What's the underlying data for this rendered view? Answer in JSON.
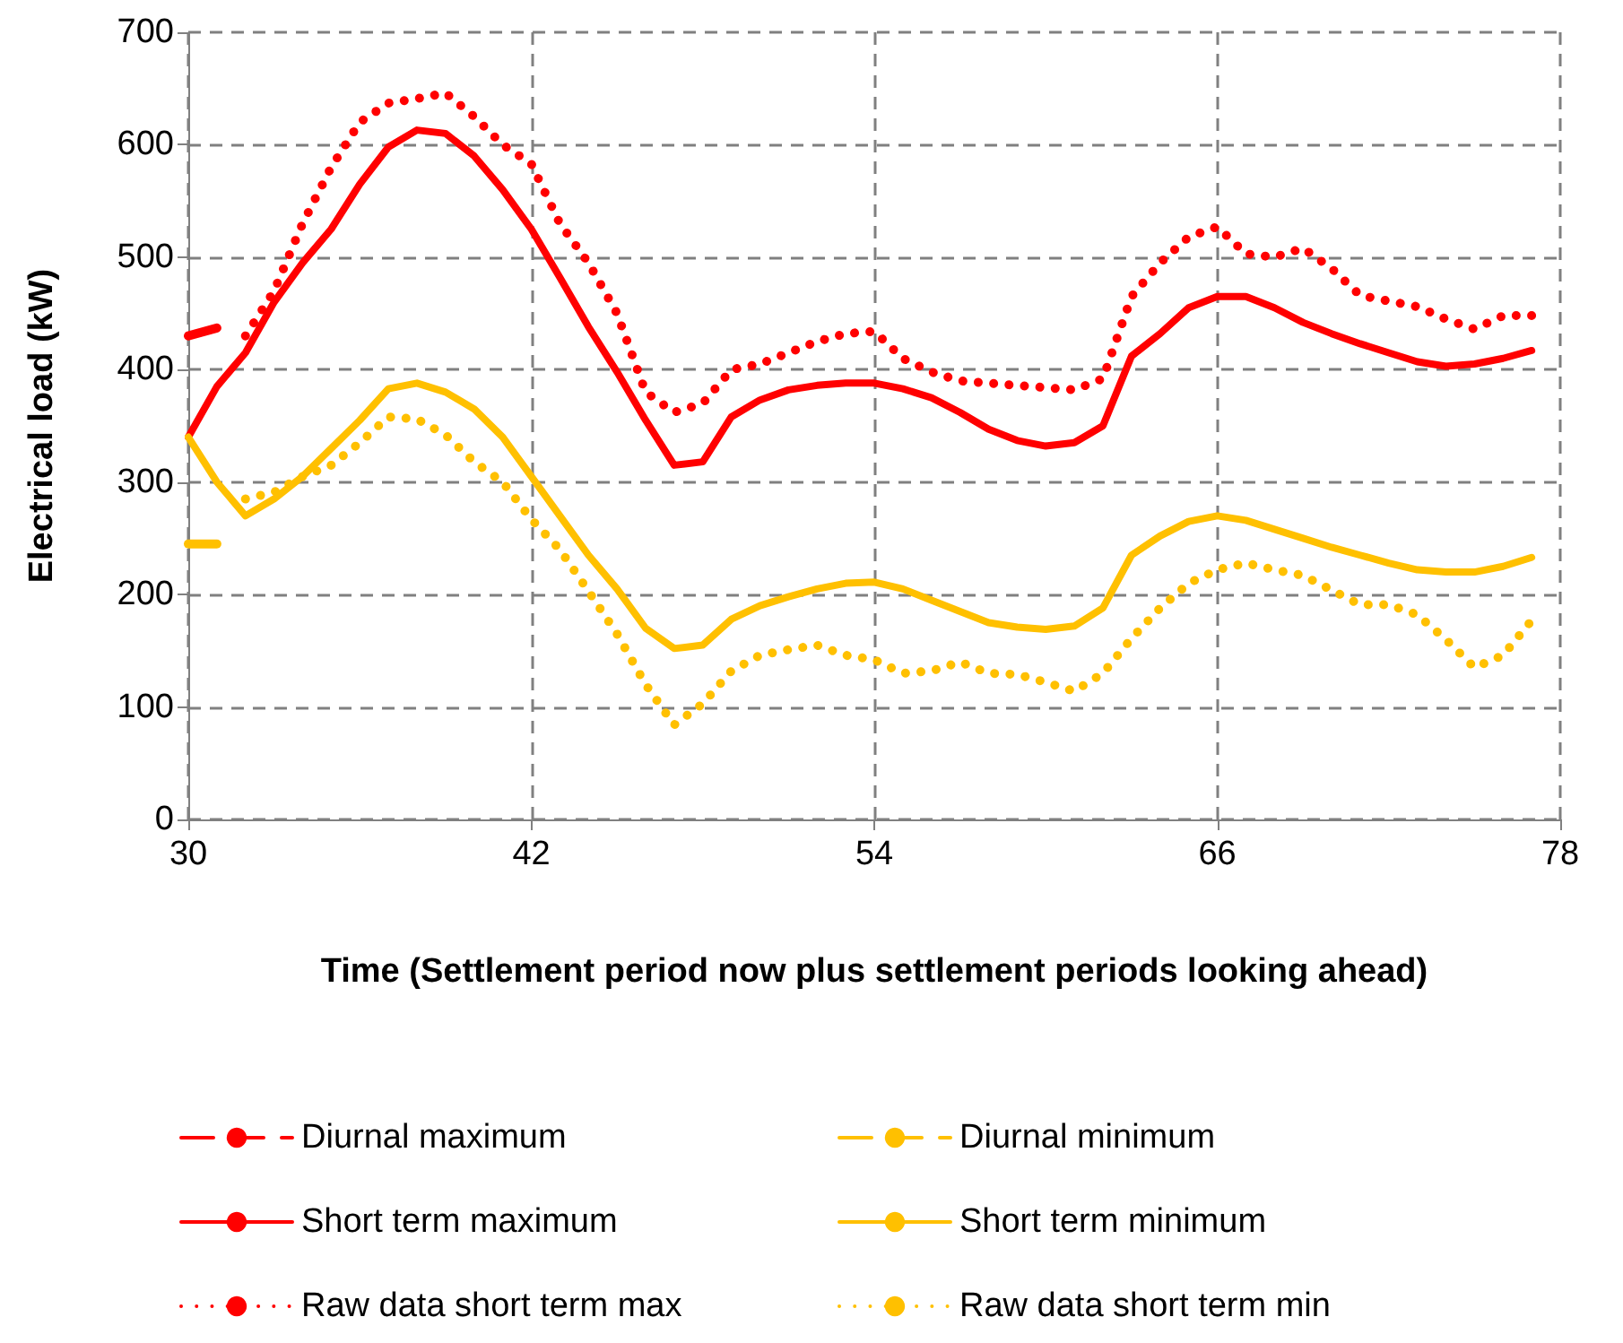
{
  "chart_data": {
    "type": "line",
    "xlabel": "Time (Settlement period now plus settlement periods looking ahead)",
    "ylabel": "Electrical load (kW)",
    "xlim": [
      30,
      78
    ],
    "xticks": [
      30,
      42,
      54,
      66,
      78
    ],
    "ylim": [
      0,
      700
    ],
    "yticks": [
      0,
      100,
      200,
      300,
      400,
      500,
      600,
      700
    ],
    "grid": true,
    "legend": "bottom",
    "marker": "none",
    "series": [
      {
        "name": "Diurnal maximum",
        "color": "#ff0000",
        "line_style": "dashed",
        "x": [
          30,
          31
        ],
        "values": [
          430,
          437
        ]
      },
      {
        "name": "Diurnal minimum",
        "color": "#ffc000",
        "line_style": "dashed",
        "x": [
          30,
          31
        ],
        "values": [
          245,
          245
        ]
      },
      {
        "name": "Short term maximum",
        "color": "#ff0000",
        "line_style": "solid",
        "x": [
          30,
          31,
          32,
          33,
          34,
          35,
          36,
          37,
          38,
          39,
          40,
          41,
          42,
          43,
          44,
          45,
          46,
          47,
          48,
          49,
          50,
          51,
          52,
          53,
          54,
          55,
          56,
          57,
          58,
          59,
          60,
          61,
          62,
          63,
          64,
          65,
          66,
          67,
          68,
          69,
          70,
          71,
          72,
          73,
          74,
          75,
          76,
          77
        ],
        "values": [
          340,
          385,
          415,
          460,
          495,
          525,
          565,
          598,
          613,
          610,
          590,
          560,
          525,
          482,
          438,
          398,
          355,
          315,
          318,
          358,
          373,
          382,
          386,
          388,
          388,
          383,
          375,
          362,
          347,
          337,
          332,
          335,
          350,
          412,
          432,
          455,
          465,
          465,
          455,
          442,
          432,
          423,
          415,
          407,
          403,
          405,
          410,
          417
        ]
      },
      {
        "name": "Short term minimum",
        "color": "#ffc000",
        "line_style": "solid",
        "x": [
          30,
          31,
          32,
          33,
          34,
          35,
          36,
          37,
          38,
          39,
          40,
          41,
          42,
          43,
          44,
          45,
          46,
          47,
          48,
          49,
          50,
          51,
          52,
          53,
          54,
          55,
          56,
          57,
          58,
          59,
          60,
          61,
          62,
          63,
          64,
          65,
          66,
          67,
          68,
          69,
          70,
          71,
          72,
          73,
          74,
          75,
          76,
          77
        ],
        "values": [
          340,
          300,
          270,
          285,
          305,
          330,
          355,
          383,
          388,
          380,
          365,
          340,
          305,
          270,
          235,
          205,
          170,
          152,
          155,
          178,
          190,
          198,
          205,
          210,
          211,
          205,
          195,
          185,
          175,
          171,
          169,
          172,
          188,
          235,
          252,
          265,
          270,
          266,
          258,
          250,
          242,
          235,
          228,
          222,
          220,
          220,
          225,
          233
        ]
      },
      {
        "name": "Raw data short term max",
        "color": "#ff0000",
        "line_style": "dotted",
        "x": [
          32,
          33,
          34,
          35,
          36,
          37,
          38,
          39,
          40,
          41,
          42,
          43,
          44,
          45,
          46,
          47,
          48,
          49,
          50,
          51,
          52,
          53,
          54,
          55,
          56,
          57,
          58,
          59,
          60,
          61,
          62,
          63,
          64,
          65,
          66,
          67,
          68,
          69,
          70,
          71,
          72,
          73,
          74,
          75,
          76,
          77
        ],
        "values": [
          430,
          470,
          530,
          580,
          620,
          637,
          641,
          646,
          625,
          600,
          583,
          530,
          495,
          450,
          380,
          362,
          370,
          400,
          405,
          415,
          425,
          432,
          434,
          410,
          398,
          390,
          388,
          386,
          384,
          382,
          392,
          465,
          495,
          518,
          527,
          503,
          500,
          508,
          490,
          466,
          461,
          456,
          445,
          436,
          448,
          448
        ]
      },
      {
        "name": "Raw data short term min",
        "color": "#ffc000",
        "line_style": "dotted",
        "x": [
          32,
          33,
          34,
          35,
          36,
          37,
          38,
          39,
          40,
          41,
          42,
          43,
          44,
          45,
          46,
          47,
          48,
          49,
          50,
          51,
          52,
          53,
          54,
          55,
          56,
          57,
          58,
          59,
          60,
          61,
          62,
          63,
          64,
          65,
          66,
          67,
          68,
          69,
          70,
          71,
          72,
          73,
          74,
          75,
          76,
          77
        ],
        "values": [
          285,
          291,
          305,
          315,
          335,
          358,
          356,
          342,
          318,
          300,
          267,
          240,
          203,
          165,
          120,
          84,
          103,
          132,
          146,
          151,
          155,
          146,
          142,
          130,
          132,
          140,
          130,
          129,
          122,
          114,
          130,
          161,
          188,
          210,
          222,
          228,
          222,
          217,
          204,
          191,
          191,
          182,
          160,
          135,
          146,
          177
        ]
      }
    ]
  }
}
